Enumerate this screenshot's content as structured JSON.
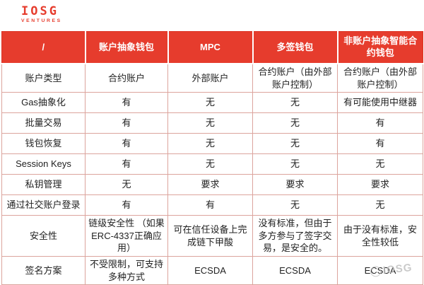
{
  "logo": {
    "name": "IOSG",
    "sub": "VENTURES"
  },
  "colors": {
    "header_red": "#e63c2d",
    "header_text": "#ffffff",
    "body_border": "#dca49d",
    "body_text": "#222222",
    "watermark_gray": "#bdbdbd"
  },
  "watermark": {
    "text": "IOSG"
  },
  "table": {
    "columns": [
      "/",
      "账户抽象钱包",
      "MPC",
      "多签钱包",
      "非账户抽象智能合\n约钱包"
    ],
    "rows": [
      {
        "label": "账户类型",
        "cells": [
          "合约账户",
          "外部账户",
          "合约账户（由外部\n账户控制）",
          "合约账户（由外部\n账户控制）"
        ]
      },
      {
        "label": "Gas抽象化",
        "cells": [
          "有",
          "无",
          "无",
          "有可能使用中继器"
        ]
      },
      {
        "label": "批量交易",
        "cells": [
          "有",
          "无",
          "无",
          "有"
        ]
      },
      {
        "label": "钱包恢复",
        "cells": [
          "有",
          "无",
          "无",
          "有"
        ]
      },
      {
        "label": "Session Keys",
        "cells": [
          "有",
          "无",
          "无",
          "无"
        ]
      },
      {
        "label": "私钥管理",
        "cells": [
          "无",
          "要求",
          "要求",
          "要求"
        ]
      },
      {
        "label": "通过社交账户登录",
        "cells": [
          "有",
          "有",
          "无",
          "无"
        ]
      },
      {
        "label": "安全性",
        "cells": [
          "链级安全性 （如果\nERC-4337正确应\n用）",
          "可在信任设备上完\n成链下甲酸",
          "没有标准，但由于\n多方参与了签字交\n易，是安全的。",
          "由于没有标准，安\n全性较低"
        ]
      },
      {
        "label": "签名方案",
        "cells": [
          "不受限制，可支持\n多种方式",
          "ECSDA",
          "ECSDA",
          "ECSDA"
        ]
      }
    ]
  }
}
